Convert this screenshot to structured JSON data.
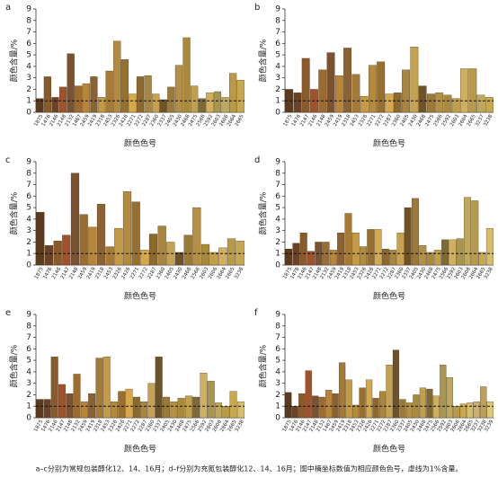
{
  "chart_data": [
    {
      "type": "bar",
      "panel": "a",
      "ylabel": "颜色含量/%",
      "xlabel": "颜色色号",
      "ylim": [
        0,
        9
      ],
      "yticks": [
        0,
        1,
        2,
        3,
        4,
        5,
        6,
        7,
        8,
        9
      ],
      "threshold": 1,
      "categories": [
        "1875",
        "1476",
        "2146",
        "2148",
        "2132",
        "1467",
        "2459",
        "2419",
        "2318",
        "2453",
        "2326",
        "2426",
        "2271",
        "2272",
        "2287",
        "2360",
        "2337",
        "2405",
        "2430",
        "2468",
        "2475",
        "2566",
        "2592",
        "2603",
        "2606",
        "2664",
        "2665"
      ],
      "values": [
        1.2,
        3.1,
        1.3,
        2.2,
        5.1,
        2.3,
        2.5,
        3.1,
        1.3,
        3.6,
        6.2,
        4.6,
        1.6,
        3.1,
        3.2,
        1.6,
        1.1,
        2.2,
        4.1,
        6.5,
        2.3,
        1.2,
        1.7,
        1.8,
        1.3,
        3.4,
        2.8
      ],
      "colors": [
        "#5c3a1e",
        "#8b5a2b",
        "#6b4226",
        "#a0522d",
        "#7a5230",
        "#9c6b30",
        "#b8863b",
        "#8a6233",
        "#c49a45",
        "#a57a35",
        "#b48a3c",
        "#97702f",
        "#d4a84b",
        "#8c6a2e",
        "#a88540",
        "#c5a250",
        "#6e5228",
        "#9b7a38",
        "#b39046",
        "#a88a3a",
        "#c1a04c",
        "#7e6a36",
        "#d0b060",
        "#a89650",
        "#bfa85a",
        "#b89a48",
        "#c8a84e"
      ]
    },
    {
      "type": "bar",
      "panel": "b",
      "ylabel": "颜色含量/%",
      "xlabel": "颜色色号",
      "ylim": [
        0,
        9
      ],
      "yticks": [
        0,
        1,
        2,
        3,
        4,
        5,
        6,
        7,
        8,
        9
      ],
      "threshold": 1,
      "categories": [
        "1875",
        "1476",
        "2147",
        "2146",
        "2148",
        "2459",
        "2419",
        "2318",
        "2453",
        "2326",
        "2271",
        "2272",
        "2287",
        "2360",
        "2405",
        "2430",
        "2468",
        "2475",
        "2566",
        "2592",
        "2603",
        "2664",
        "2665",
        "3237",
        "3238"
      ],
      "values": [
        2.0,
        1.7,
        4.7,
        2.0,
        3.7,
        5.2,
        3.2,
        5.6,
        3.3,
        1.4,
        4.1,
        4.4,
        1.6,
        1.7,
        3.7,
        5.7,
        2.3,
        1.6,
        1.7,
        1.5,
        1.2,
        3.8,
        3.8,
        1.5,
        1.3
      ],
      "colors": [
        "#5c3a1e",
        "#6b4226",
        "#8b5a2b",
        "#a0522d",
        "#9c6b30",
        "#7a5230",
        "#b8863b",
        "#8a6233",
        "#a57a35",
        "#c49a45",
        "#b48a3c",
        "#97702f",
        "#d4a84b",
        "#8c6a2e",
        "#a88540",
        "#c5a250",
        "#6e5228",
        "#9b7a38",
        "#b39046",
        "#a88a3a",
        "#c1a04c",
        "#d0b060",
        "#b89a48",
        "#bfa85a",
        "#c8a84e"
      ]
    },
    {
      "type": "bar",
      "panel": "c",
      "ylabel": "颜色含量/%",
      "xlabel": "颜色色号",
      "ylim": [
        0,
        9
      ],
      "yticks": [
        0,
        1,
        2,
        3,
        4,
        5,
        6,
        7,
        8,
        9
      ],
      "threshold": 1,
      "categories": [
        "1875",
        "1476",
        "2146",
        "2147",
        "2148",
        "2459",
        "2419",
        "2318",
        "2453",
        "2326",
        "2426",
        "2271",
        "2272",
        "2287",
        "2360",
        "2405",
        "2430",
        "2468",
        "2566",
        "2603",
        "2606",
        "2664",
        "2665",
        "3238"
      ],
      "values": [
        4.6,
        1.7,
        2.1,
        2.6,
        8.0,
        4.4,
        3.3,
        5.3,
        1.6,
        3.2,
        6.4,
        5.5,
        1.3,
        2.7,
        3.4,
        2.0,
        1.1,
        2.6,
        5.0,
        1.8,
        1.1,
        1.5,
        2.3,
        2.1
      ],
      "colors": [
        "#5c3a1e",
        "#6b4226",
        "#8b5a2b",
        "#a0522d",
        "#7a5230",
        "#9c6b30",
        "#b8863b",
        "#8a6233",
        "#a57a35",
        "#c49a45",
        "#b48a3c",
        "#97702f",
        "#d4a84b",
        "#8c6a2e",
        "#a88540",
        "#c5a250",
        "#6e5228",
        "#9b7a38",
        "#b39046",
        "#a88a3a",
        "#c1a04c",
        "#d0b060",
        "#b89a48",
        "#c8a84e"
      ]
    },
    {
      "type": "bar",
      "panel": "d",
      "ylabel": "颜色含量/%",
      "xlabel": "颜色色号",
      "ylim": [
        0,
        9
      ],
      "yticks": [
        0,
        1,
        2,
        3,
        4,
        5,
        6,
        7,
        8,
        9
      ],
      "threshold": 1,
      "categories": [
        "1875",
        "1476",
        "2146",
        "2147",
        "2148",
        "2132",
        "2459",
        "2419",
        "2318",
        "2453",
        "2326",
        "2426",
        "2271",
        "2272",
        "2287",
        "2360",
        "2337",
        "2405",
        "2430",
        "2468",
        "2475",
        "2566",
        "2592",
        "2603",
        "2606",
        "2664",
        "2665",
        "3238"
      ],
      "values": [
        1.4,
        1.9,
        2.8,
        1.2,
        2.0,
        2.0,
        1.3,
        2.8,
        4.5,
        2.8,
        1.6,
        3.1,
        3.1,
        1.4,
        1.3,
        2.8,
        5.0,
        5.8,
        1.7,
        1.1,
        1.3,
        2.2,
        2.2,
        2.3,
        5.9,
        5.6,
        1.1,
        3.2
      ],
      "colors": [
        "#5c3a1e",
        "#6b4226",
        "#8b5a2b",
        "#a0522d",
        "#7a5230",
        "#9c6b30",
        "#b8863b",
        "#8a6233",
        "#a57a35",
        "#c49a45",
        "#b48a3c",
        "#97702f",
        "#d4a84b",
        "#8c6a2e",
        "#a88540",
        "#c5a250",
        "#6e5228",
        "#9b7a38",
        "#b39046",
        "#a88a3a",
        "#c1a04c",
        "#7e6a36",
        "#d0b060",
        "#a89650",
        "#bfa85a",
        "#b89a48",
        "#c8a84e",
        "#d8bc6a"
      ]
    },
    {
      "type": "bar",
      "panel": "e",
      "ylabel": "颜色含量/%",
      "xlabel": "颜色色号",
      "ylim": [
        0,
        9
      ],
      "yticks": [
        0,
        1,
        2,
        3,
        4,
        5,
        6,
        7,
        8,
        9
      ],
      "threshold": 1,
      "categories": [
        "1875",
        "1476",
        "2146",
        "2147",
        "2148",
        "2132",
        "2459",
        "2419",
        "2318",
        "2453",
        "2326",
        "2426",
        "2271",
        "2272",
        "2287",
        "2360",
        "2337",
        "2405",
        "2430",
        "2468",
        "2475",
        "2566",
        "2592",
        "2603",
        "2606",
        "2664",
        "2665",
        "3238"
      ],
      "values": [
        1.6,
        1.6,
        5.3,
        2.9,
        2.1,
        3.8,
        1.4,
        2.1,
        5.2,
        5.3,
        1.4,
        2.3,
        2.5,
        1.8,
        1.4,
        3.0,
        5.3,
        1.8,
        1.4,
        1.7,
        1.9,
        1.8,
        3.9,
        3.2,
        1.3,
        1.0,
        2.3,
        1.4
      ],
      "colors": [
        "#5c3a1e",
        "#6b4226",
        "#8b5a2b",
        "#a0522d",
        "#7a5230",
        "#9c6b30",
        "#b8863b",
        "#8a6233",
        "#a57a35",
        "#c49a45",
        "#b48a3c",
        "#97702f",
        "#d4a84b",
        "#8c6a2e",
        "#a88540",
        "#c5a250",
        "#6e5228",
        "#9b7a38",
        "#b39046",
        "#a88a3a",
        "#c1a04c",
        "#7e6a36",
        "#d0b060",
        "#a89650",
        "#bfa85a",
        "#b89a48",
        "#c8a84e",
        "#d8bc6a"
      ]
    },
    {
      "type": "bar",
      "panel": "f",
      "ylabel": "颜色含量/%",
      "xlabel": "颜色色号",
      "ylim": [
        0,
        9
      ],
      "yticks": [
        0,
        1,
        2,
        3,
        4,
        5,
        6,
        7,
        8,
        9
      ],
      "threshold": 1,
      "categories": [
        "1875",
        "1476",
        "2146",
        "2147",
        "2148",
        "2132",
        "1467",
        "2459",
        "2419",
        "2318",
        "2453",
        "2326",
        "2426",
        "2271",
        "2272",
        "2287",
        "2360",
        "2337",
        "2405",
        "2430",
        "2468",
        "2475",
        "2566",
        "2592",
        "2603",
        "2606",
        "2664",
        "2665",
        "3237",
        "3238",
        "3239"
      ],
      "values": [
        2.2,
        1.0,
        2.1,
        4.1,
        1.9,
        1.8,
        2.4,
        2.1,
        4.8,
        3.3,
        1.1,
        2.6,
        3.3,
        1.7,
        2.3,
        4.6,
        5.9,
        1.6,
        1.3,
        2.0,
        2.6,
        2.5,
        1.9,
        4.6,
        3.5,
        1.0,
        1.2,
        1.3,
        1.4,
        2.7,
        1.4
      ],
      "colors": [
        "#5c3a1e",
        "#6b4226",
        "#8b5a2b",
        "#a0522d",
        "#7a5230",
        "#9c6b30",
        "#b8863b",
        "#8a6233",
        "#a57a35",
        "#c49a45",
        "#b48a3c",
        "#97702f",
        "#d4a84b",
        "#8c6a2e",
        "#a88540",
        "#c5a250",
        "#6e5228",
        "#9b7a38",
        "#b39046",
        "#a88a3a",
        "#c1a04c",
        "#7e6a36",
        "#d0b060",
        "#a89650",
        "#bfa85a",
        "#b89a48",
        "#c8a84e",
        "#d8bc6a",
        "#cdb070",
        "#bca060",
        "#e0c878"
      ]
    }
  ],
  "caption": "a–c分别为常规包装醇化12、14、16月；d–f分别为充氮包装醇化12、14、16月；图中横坐标数值为相应颜色色号，虚线为1%含量。"
}
